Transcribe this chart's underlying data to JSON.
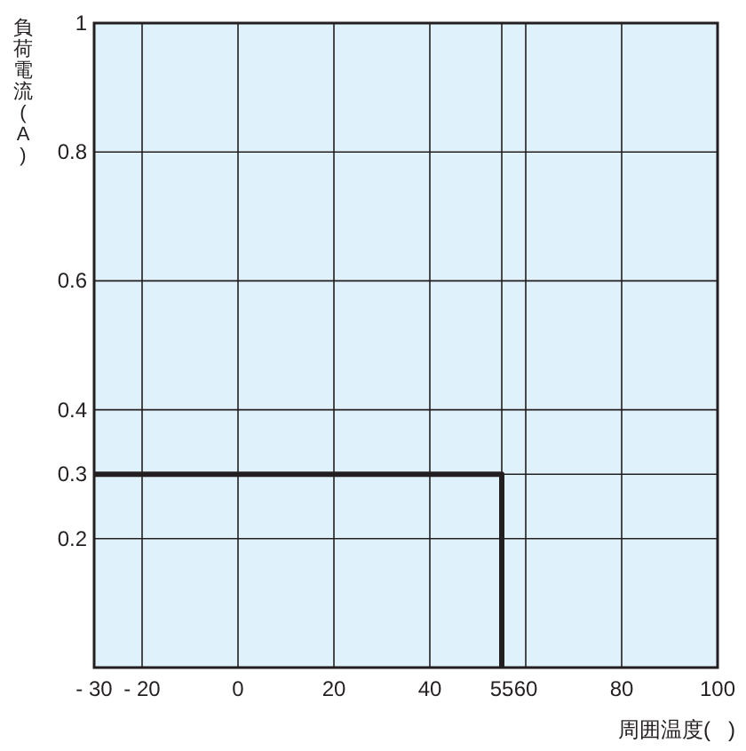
{
  "chart_data": {
    "type": "step",
    "xlabel": "周囲温度(   )",
    "ylabel": "負荷電流(A)",
    "x": [
      -30,
      55
    ],
    "series": [
      {
        "color": "#231f20",
        "values": [
          0.3,
          0
        ]
      }
    ],
    "xlim": [
      -30,
      100
    ],
    "xticks": [
      {
        "value": -30,
        "label": "- 30"
      },
      {
        "value": -20,
        "label": "- 20"
      },
      0,
      20,
      40,
      55,
      60,
      80,
      100
    ],
    "ylim": [
      0,
      1
    ],
    "yticks": [
      0.2,
      0.3,
      0.4,
      0.6,
      0.8,
      1
    ],
    "grid": true,
    "marker": "none",
    "line_style": "solid"
  }
}
